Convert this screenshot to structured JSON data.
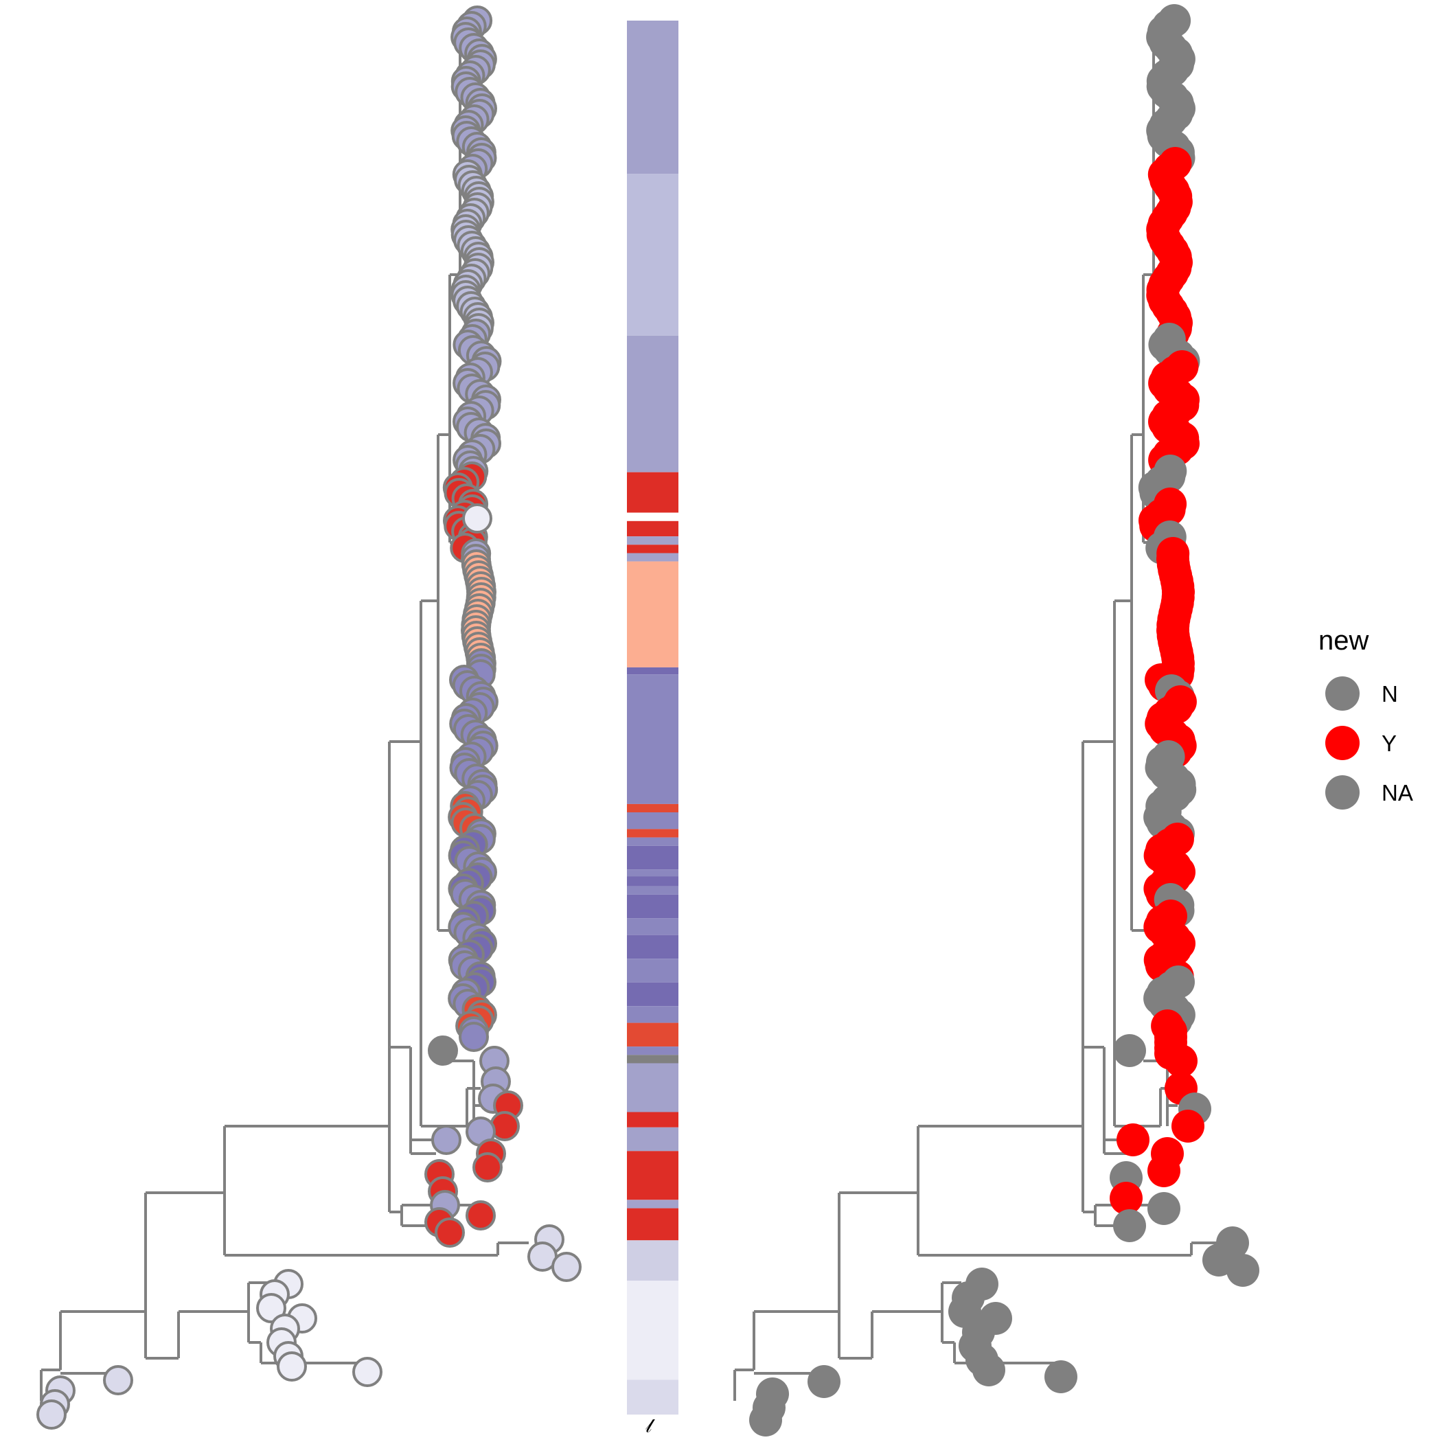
{
  "chart_data": [
    {
      "type": "phylogenetic-tree",
      "panel": "left",
      "tip_fill": "group colour",
      "grid": false,
      "legend": "none"
    },
    {
      "type": "heatmap-strip",
      "panel": "middle",
      "strip_label": "𝓁",
      "blocks": [
        {
          "color": "#a3a2cb",
          "from": 0.0,
          "to": 0.11
        },
        {
          "color": "#bcbddc",
          "from": 0.11,
          "to": 0.226
        },
        {
          "color": "#a3a2cb",
          "from": 0.226,
          "to": 0.324
        },
        {
          "color": "#de2d26",
          "from": 0.324,
          "to": 0.353
        },
        {
          "color": "#ffffff",
          "from": 0.353,
          "to": 0.359
        },
        {
          "color": "#de2d26",
          "from": 0.359,
          "to": 0.37
        },
        {
          "color": "#a3a2cb",
          "from": 0.37,
          "to": 0.376
        },
        {
          "color": "#de2d26",
          "from": 0.376,
          "to": 0.382
        },
        {
          "color": "#a3a2cb",
          "from": 0.382,
          "to": 0.388
        },
        {
          "color": "#fcae91",
          "from": 0.388,
          "to": 0.464
        },
        {
          "color": "#756bb1",
          "from": 0.464,
          "to": 0.469
        },
        {
          "color": "#8b87bf",
          "from": 0.469,
          "to": 0.562
        },
        {
          "color": "#e34a33",
          "from": 0.562,
          "to": 0.568
        },
        {
          "color": "#8b87bf",
          "from": 0.568,
          "to": 0.58
        },
        {
          "color": "#e34a33",
          "from": 0.58,
          "to": 0.586
        },
        {
          "color": "#8b87bf",
          "from": 0.586,
          "to": 0.592
        },
        {
          "color": "#756bb1",
          "from": 0.592,
          "to": 0.609
        },
        {
          "color": "#8b87bf",
          "from": 0.609,
          "to": 0.614
        },
        {
          "color": "#756bb1",
          "from": 0.614,
          "to": 0.621
        },
        {
          "color": "#8b87bf",
          "from": 0.621,
          "to": 0.627
        },
        {
          "color": "#756bb1",
          "from": 0.627,
          "to": 0.644
        },
        {
          "color": "#8b87bf",
          "from": 0.644,
          "to": 0.656
        },
        {
          "color": "#756bb1",
          "from": 0.656,
          "to": 0.673
        },
        {
          "color": "#8b87bf",
          "from": 0.673,
          "to": 0.69
        },
        {
          "color": "#756bb1",
          "from": 0.69,
          "to": 0.707
        },
        {
          "color": "#8b87bf",
          "from": 0.707,
          "to": 0.719
        },
        {
          "color": "#e34a33",
          "from": 0.719,
          "to": 0.736
        },
        {
          "color": "#8b87bf",
          "from": 0.736,
          "to": 0.742
        },
        {
          "color": "#808080",
          "from": 0.742,
          "to": 0.748
        },
        {
          "color": "#a3a2cb",
          "from": 0.748,
          "to": 0.783
        },
        {
          "color": "#de2d26",
          "from": 0.783,
          "to": 0.794
        },
        {
          "color": "#a3a2cb",
          "from": 0.794,
          "to": 0.811
        },
        {
          "color": "#de2d26",
          "from": 0.811,
          "to": 0.846
        },
        {
          "color": "#a3a2cb",
          "from": 0.846,
          "to": 0.852
        },
        {
          "color": "#de2d26",
          "from": 0.852,
          "to": 0.875
        },
        {
          "color": "#cfcfe4",
          "from": 0.875,
          "to": 0.904
        },
        {
          "color": "#ededf6",
          "from": 0.904,
          "to": 0.975
        },
        {
          "color": "#dadaeb",
          "from": 0.975,
          "to": 1.0
        }
      ]
    },
    {
      "type": "phylogenetic-tree",
      "panel": "right",
      "tip_fill": "new",
      "grid": false,
      "legend": "right",
      "legend_title": "new",
      "legend_items": [
        {
          "label": "N",
          "color": "#808080"
        },
        {
          "label": "Y",
          "color": "#ff0000"
        },
        {
          "label": "NA",
          "color": "#808080"
        }
      ]
    }
  ]
}
